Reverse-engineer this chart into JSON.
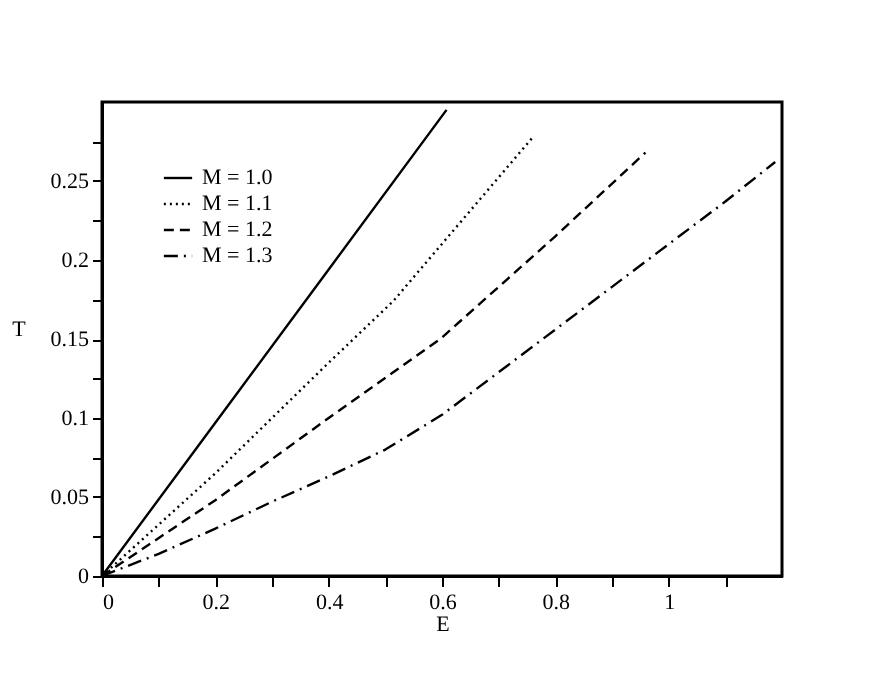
{
  "chart_data": {
    "type": "line",
    "xlabel": "E",
    "ylabel": "T",
    "xlim": [
      0,
      1.2
    ],
    "ylim": [
      0,
      0.3
    ],
    "xticks": [
      0,
      {
        "value": 0.1,
        "label": null
      },
      0.2,
      {
        "value": 0.3,
        "label": null
      },
      0.4,
      {
        "value": 0.5,
        "label": null
      },
      0.6,
      {
        "value": 0.7,
        "label": null
      },
      0.8,
      {
        "value": 0.9,
        "label": null
      },
      1,
      {
        "value": 1.1,
        "label": null
      }
    ],
    "yticks": [
      0,
      {
        "value": 0.025,
        "label": null
      },
      0.05,
      {
        "value": 0.075,
        "label": null
      },
      0.1,
      {
        "value": 0.125,
        "label": null
      },
      0.15,
      {
        "value": 0.175,
        "label": null
      },
      0.2,
      {
        "value": 0.225,
        "label": null
      },
      0.25,
      {
        "value": 0.275,
        "label": null
      }
    ],
    "grid": false,
    "legend": "top left",
    "marker": "none",
    "series": [
      {
        "name": "M = 1.0",
        "color": "#000000",
        "line_style": "solid",
        "x": [
          0,
          0.2,
          0.4,
          0.608
        ],
        "values": [
          0,
          0.097,
          0.194,
          0.295
        ]
      },
      {
        "name": "M = 1.1",
        "color": "#000000",
        "line_style": "dotted",
        "x": [
          0,
          0.2,
          0.4,
          0.514,
          0.761
        ],
        "values": [
          0,
          0.065,
          0.135,
          0.174,
          0.278
        ]
      },
      {
        "name": "M = 1.2",
        "color": "#000000",
        "line_style": "dashed",
        "x": [
          0,
          0.2,
          0.4,
          0.597,
          0.8,
          0.959
        ],
        "values": [
          0,
          0.048,
          0.1,
          0.15,
          0.215,
          0.268
        ]
      },
      {
        "name": "M = 1.3",
        "color": "#000000",
        "line_style": "dashdot",
        "x": [
          0,
          0.1,
          0.2,
          0.3,
          0.4,
          0.5,
          0.6,
          0.7,
          0.8,
          0.9,
          1,
          1.1,
          1.188
        ],
        "values": [
          0,
          0.014,
          0.03,
          0.047,
          0.063,
          0.08,
          0.102,
          0.129,
          0.156,
          0.183,
          0.21,
          0.237,
          0.262
        ]
      }
    ]
  }
}
